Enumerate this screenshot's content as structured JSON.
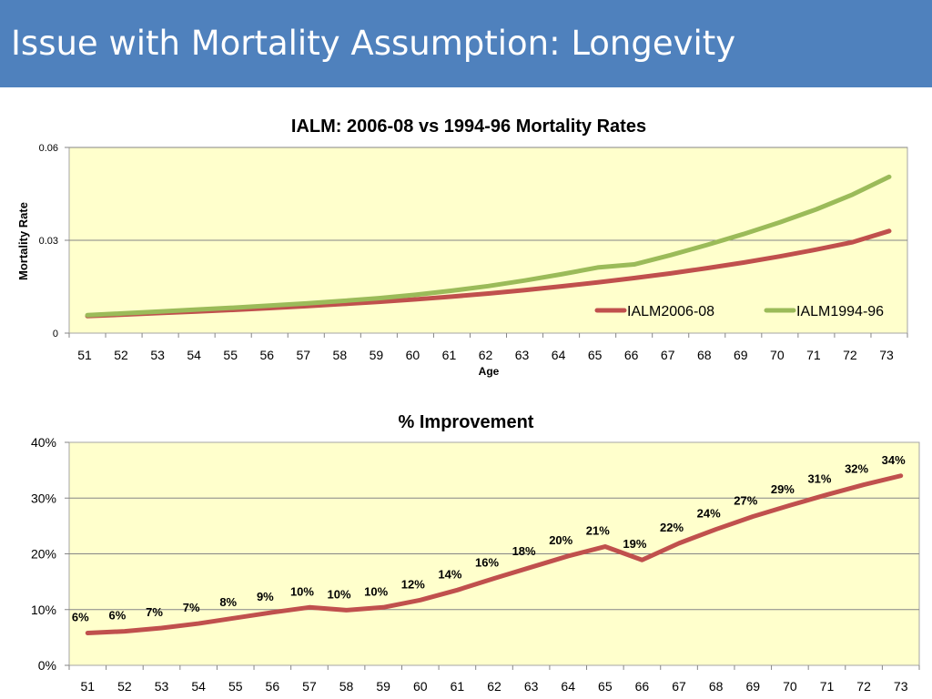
{
  "slide": {
    "title": "Issue with Mortality Assumption: Longevity",
    "header_color": "#4f81bd"
  },
  "chart_data": [
    {
      "type": "line",
      "title": "IALM: 2006-08 vs 1994-96 Mortality Rates",
      "xlabel": "Age",
      "ylabel": "Mortality Rate",
      "categories": [
        "51",
        "52",
        "53",
        "54",
        "55",
        "56",
        "57",
        "58",
        "59",
        "60",
        "61",
        "62",
        "63",
        "64",
        "65",
        "66",
        "67",
        "68",
        "69",
        "70",
        "71",
        "72",
        "73"
      ],
      "ylim": [
        0,
        0.06
      ],
      "yticks": [
        0,
        0.03,
        0.06
      ],
      "ytick_labels": [
        "0",
        "0.03",
        "0.06"
      ],
      "grid": true,
      "legend_position": "bottom-right",
      "background": "#ffffcc",
      "series": [
        {
          "name": "IALM2006-08",
          "color": "#c0504d",
          "values": [
            0.0055,
            0.006,
            0.0065,
            0.007,
            0.0075,
            0.0081,
            0.0087,
            0.0094,
            0.0101,
            0.0109,
            0.0118,
            0.0128,
            0.0139,
            0.0151,
            0.0164,
            0.0178,
            0.0193,
            0.021,
            0.0228,
            0.0248,
            0.027,
            0.0294,
            0.033
          ]
        },
        {
          "name": "IALM1994-96",
          "color": "#9bbb59",
          "values": [
            0.0058,
            0.0064,
            0.007,
            0.0076,
            0.0082,
            0.0089,
            0.0096,
            0.0104,
            0.0113,
            0.0124,
            0.0137,
            0.0152,
            0.017,
            0.019,
            0.0212,
            0.0222,
            0.0252,
            0.0285,
            0.032,
            0.0358,
            0.04,
            0.0448,
            0.0505
          ]
        }
      ]
    },
    {
      "type": "line",
      "title": "% Improvement",
      "xlabel": "",
      "ylabel": "",
      "categories": [
        "51",
        "52",
        "53",
        "54",
        "55",
        "56",
        "57",
        "58",
        "59",
        "60",
        "61",
        "62",
        "63",
        "64",
        "65",
        "66",
        "67",
        "68",
        "69",
        "70",
        "71",
        "72",
        "73"
      ],
      "ylim": [
        0,
        40
      ],
      "yticks": [
        0,
        10,
        20,
        30,
        40
      ],
      "ytick_labels": [
        "0%",
        "10%",
        "20%",
        "30%",
        "40%"
      ],
      "grid": true,
      "background": "#ffffcc",
      "series": [
        {
          "name": "% Improvement",
          "color": "#c0504d",
          "values": [
            5.8,
            6.1,
            6.7,
            7.5,
            8.5,
            9.5,
            10.4,
            9.9,
            10.4,
            11.7,
            13.5,
            15.6,
            17.6,
            19.6,
            21.3,
            18.9,
            21.9,
            24.4,
            26.7,
            28.7,
            30.6,
            32.4,
            34.0
          ],
          "data_labels": [
            "6%",
            "6%",
            "7%",
            "7%",
            "8%",
            "9%",
            "10%",
            "10%",
            "10%",
            "12%",
            "14%",
            "16%",
            "18%",
            "20%",
            "21%",
            "19%",
            "22%",
            "24%",
            "27%",
            "29%",
            "31%",
            "32%",
            "34%"
          ]
        }
      ]
    }
  ]
}
